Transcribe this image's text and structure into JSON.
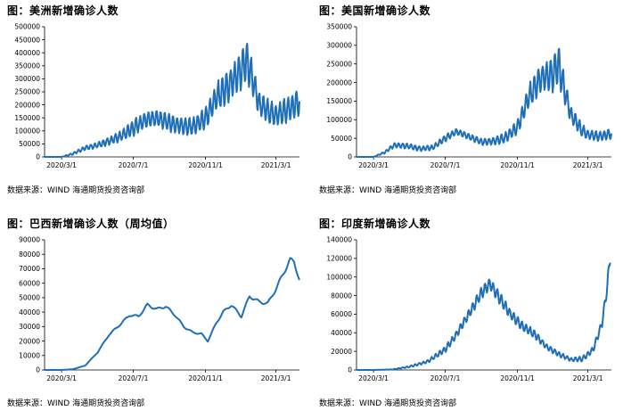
{
  "panels": [
    {
      "title": "图：美洲新增确诊人数",
      "source": "数据来源：WIND   海通期货投资咨询部",
      "chart_data": {
        "type": "line",
        "color": "#1f6fb8",
        "ylim": [
          0,
          500000
        ],
        "yticks": [
          "0",
          "50000",
          "100000",
          "150000",
          "200000",
          "250000",
          "300000",
          "350000",
          "400000",
          "450000",
          "500000"
        ],
        "xticks": [
          "2020/3/1",
          "2020/7/1",
          "2020/11/1",
          "2021/3/1"
        ],
        "series": [
          {
            "shape": "weekly",
            "x": [
              "2020/2/1",
              "2020/3/1",
              "2020/3/20",
              "2020/4/10",
              "2020/5/1",
              "2020/5/20",
              "2020/6/10",
              "2020/7/1",
              "2020/7/20",
              "2020/8/10",
              "2020/9/1",
              "2020/9/20",
              "2020/10/10",
              "2020/11/1",
              "2020/11/20",
              "2020/12/10",
              "2021/1/1",
              "2021/1/10",
              "2021/1/20",
              "2021/2/1",
              "2021/2/20",
              "2021/3/1",
              "2021/3/20",
              "2021/4/10"
            ],
            "values": [
              0,
              0,
              12000,
              35000,
              45000,
              60000,
              80000,
              110000,
              140000,
              150000,
              130000,
              120000,
              115000,
              150000,
              230000,
              270000,
              330000,
              370000,
              300000,
              200000,
              170000,
              160000,
              180000,
              210000
            ],
            "amp": [
              0,
              0,
              4000,
              8000,
              10000,
              14000,
              18000,
              28000,
              30000,
              30000,
              32000,
              30000,
              30000,
              40000,
              50000,
              60000,
              70000,
              75000,
              60000,
              45000,
              40000,
              40000,
              45000,
              45000
            ]
          }
        ]
      }
    },
    {
      "title": "图：美国新增确诊人数",
      "source": "数据来源：WIND   海通期货投资咨询部",
      "chart_data": {
        "type": "line",
        "color": "#1f6fb8",
        "ylim": [
          0,
          350000
        ],
        "yticks": [
          "0",
          "50000",
          "100000",
          "150000",
          "200000",
          "250000",
          "300000",
          "350000"
        ],
        "xticks": [
          "2020/3/1",
          "2020/7/1",
          "2020/11/1",
          "2021/3/1"
        ],
        "series": [
          {
            "shape": "weekly",
            "x": [
              "2020/2/1",
              "2020/3/1",
              "2020/3/20",
              "2020/4/5",
              "2020/4/25",
              "2020/5/20",
              "2020/6/10",
              "2020/7/1",
              "2020/7/20",
              "2020/8/10",
              "2020/9/1",
              "2020/9/20",
              "2020/10/10",
              "2020/11/1",
              "2020/11/20",
              "2020/12/10",
              "2021/1/1",
              "2021/1/10",
              "2021/1/20",
              "2021/2/1",
              "2021/2/20",
              "2021/3/1",
              "2021/3/20",
              "2021/4/10"
            ],
            "values": [
              0,
              0,
              12000,
              32000,
              30000,
              22000,
              25000,
              50000,
              68000,
              55000,
              40000,
              42000,
              50000,
              80000,
              160000,
              210000,
              220000,
              250000,
              180000,
              110000,
              70000,
              60000,
              55000,
              62000
            ],
            "amp": [
              0,
              0,
              3000,
              6000,
              7000,
              6000,
              6000,
              8000,
              8000,
              8000,
              8000,
              9000,
              12000,
              18000,
              30000,
              35000,
              45000,
              50000,
              35000,
              22000,
              15000,
              12000,
              12000,
              12000
            ]
          }
        ]
      }
    },
    {
      "title": "图：巴西新增确诊人数（周均值）",
      "source": "数据来源：WIND   海通期货投资咨询部",
      "chart_data": {
        "type": "line",
        "color": "#1f6fb8",
        "ylim": [
          0,
          90000
        ],
        "yticks": [
          "0",
          "10000",
          "20000",
          "30000",
          "40000",
          "50000",
          "60000",
          "70000",
          "80000",
          "90000"
        ],
        "xticks": [
          "2020/3/1",
          "2020/7/1",
          "2020/11/1",
          "2021/3/1"
        ],
        "series": [
          {
            "shape": "smooth",
            "x": [
              "2020/2/1",
              "2020/3/1",
              "2020/3/20",
              "2020/4/10",
              "2020/5/1",
              "2020/5/20",
              "2020/6/10",
              "2020/6/25",
              "2020/7/10",
              "2020/7/25",
              "2020/8/10",
              "2020/8/25",
              "2020/9/10",
              "2020/9/25",
              "2020/10/10",
              "2020/10/25",
              "2020/11/5",
              "2020/11/20",
              "2020/12/1",
              "2020/12/15",
              "2021/1/1",
              "2021/1/15",
              "2021/2/1",
              "2021/2/15",
              "2021/3/1",
              "2021/3/15",
              "2021/3/25",
              "2021/4/1",
              "2021/4/10"
            ],
            "values": [
              0,
              0,
              500,
              3000,
              12000,
              24000,
              32000,
              38000,
              37000,
              45000,
              42000,
              44000,
              38000,
              30000,
              26000,
              25000,
              20000,
              33000,
              40000,
              45000,
              37000,
              51000,
              47000,
              46000,
              56000,
              68000,
              76000,
              75000,
              62000
            ]
          }
        ]
      }
    },
    {
      "title": "图：印度新增确诊人数",
      "source": "数据来源：WIND   海通期货投资咨询部",
      "chart_data": {
        "type": "line",
        "color": "#1f6fb8",
        "ylim": [
          0,
          140000
        ],
        "yticks": [
          "0",
          "20000",
          "40000",
          "60000",
          "80000",
          "100000",
          "120000",
          "140000"
        ],
        "xticks": [
          "2020/3/1",
          "2020/7/1",
          "2020/11/1",
          "2021/3/1"
        ],
        "series": [
          {
            "shape": "weekly",
            "x": [
              "2020/2/1",
              "2020/3/1",
              "2020/4/1",
              "2020/5/1",
              "2020/6/1",
              "2020/7/1",
              "2020/7/20",
              "2020/8/10",
              "2020/9/1",
              "2020/9/15",
              "2020/10/1",
              "2020/10/20",
              "2020/11/10",
              "2020/12/1",
              "2020/12/20",
              "2021/1/10",
              "2021/2/1",
              "2021/2/20",
              "2021/3/10",
              "2021/3/25",
              "2021/4/3",
              "2021/4/8"
            ],
            "values": [
              0,
              0,
              500,
              3500,
              9000,
              22000,
              38000,
              60000,
              83000,
              93000,
              78000,
              60000,
              47000,
              38000,
              25000,
              17000,
              11000,
              12000,
              22000,
              50000,
              90000,
              122000
            ],
            "amp": [
              0,
              0,
              200,
              800,
              1500,
              3000,
              4000,
              5000,
              6000,
              6000,
              6000,
              5000,
              5000,
              4000,
              3000,
              2500,
              2000,
              2500,
              3000,
              4000,
              6000,
              6000
            ]
          }
        ]
      }
    }
  ]
}
